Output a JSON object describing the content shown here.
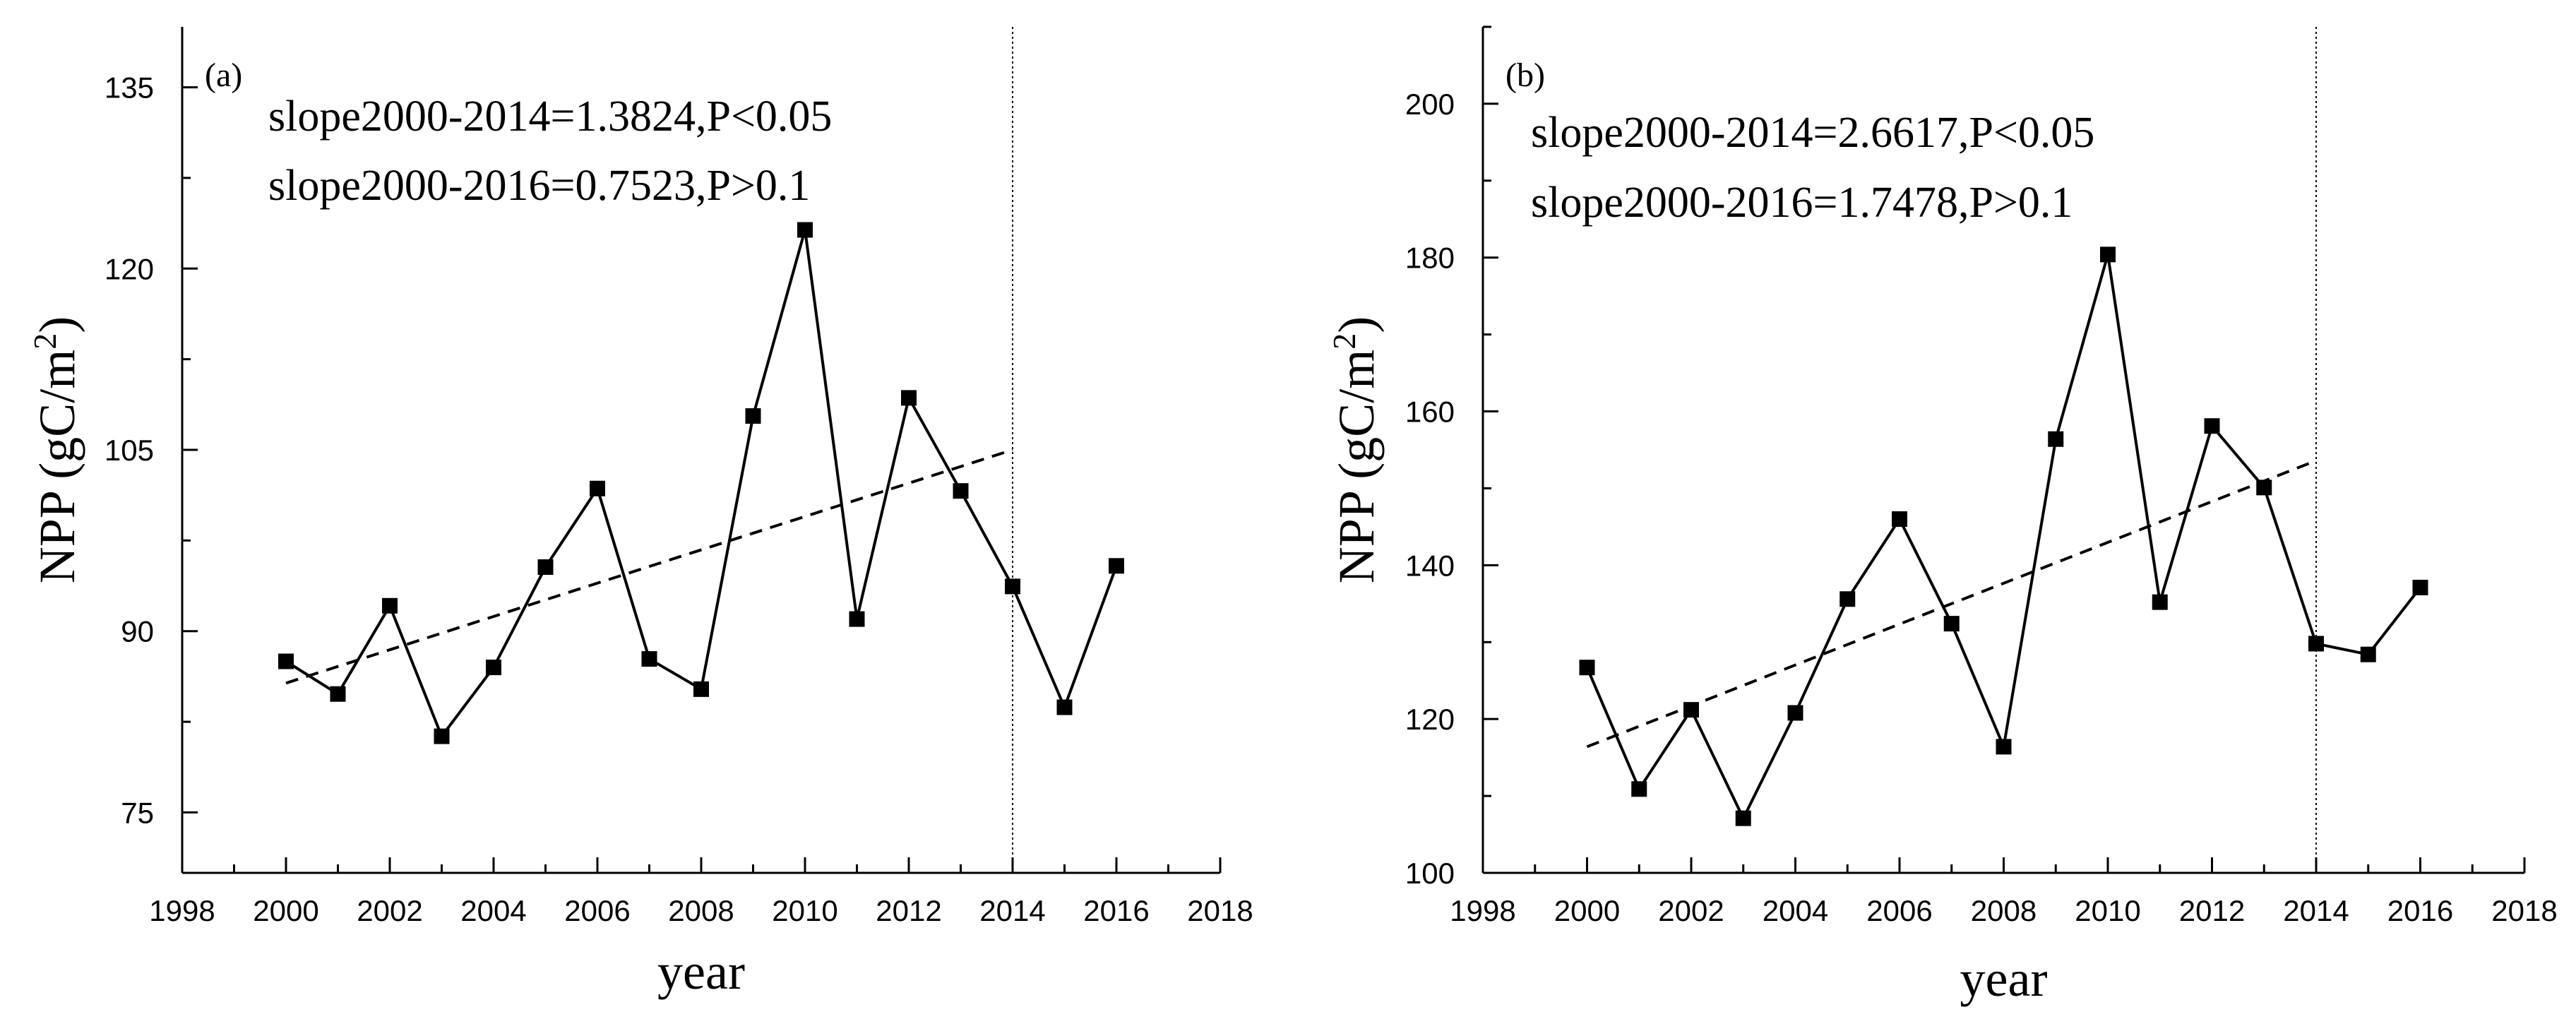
{
  "chart_data": [
    {
      "type": "line",
      "panel_label": "(a)",
      "xlabel": "year",
      "ylabel": "NPP (gC/m",
      "ylabel_sup": "2",
      "ylabel_close": ")",
      "xlim": [
        1998,
        2018
      ],
      "ylim": [
        70,
        140
      ],
      "xticks": [
        1998,
        2000,
        2002,
        2004,
        2006,
        2008,
        2010,
        2012,
        2014,
        2016,
        2018
      ],
      "yticks": [
        75,
        90,
        105,
        120,
        135
      ],
      "x": [
        2000,
        2001,
        2002,
        2003,
        2004,
        2005,
        2006,
        2007,
        2008,
        2009,
        2010,
        2011,
        2012,
        2013,
        2014,
        2015,
        2016
      ],
      "series": [
        {
          "name": "NPP",
          "values": [
            87.5,
            84.8,
            92.1,
            81.3,
            87.0,
            95.3,
            101.8,
            87.7,
            85.2,
            107.8,
            123.2,
            91.0,
            109.3,
            101.6,
            93.7,
            83.7,
            95.4
          ]
        }
      ],
      "trend": {
        "x": [
          2000,
          2014
        ],
        "y": [
          85.7,
          105.0
        ]
      },
      "reference_x": 2014,
      "annotations": [
        "slope2000-2014=1.3824,P<0.05",
        "slope2000-2016=0.7523,P>0.1"
      ]
    },
    {
      "type": "line",
      "panel_label": "(b)",
      "xlabel": "year",
      "ylabel": "NPP (gC/m",
      "ylabel_sup": "2",
      "ylabel_close": ")",
      "xlim": [
        1998,
        2018
      ],
      "ylim": [
        100,
        210
      ],
      "xticks": [
        1998,
        2000,
        2002,
        2004,
        2006,
        2008,
        2010,
        2012,
        2014,
        2016,
        2018
      ],
      "yticks": [
        100,
        120,
        140,
        160,
        180,
        200
      ],
      "x": [
        2000,
        2001,
        2002,
        2003,
        2004,
        2005,
        2006,
        2007,
        2008,
        2009,
        2010,
        2011,
        2012,
        2013,
        2014,
        2015,
        2016
      ],
      "series": [
        {
          "name": "NPP",
          "values": [
            126.7,
            110.9,
            121.2,
            107.1,
            120.8,
            135.6,
            146.0,
            132.4,
            116.4,
            156.4,
            180.4,
            135.2,
            158.1,
            150.1,
            129.8,
            128.4,
            137.1
          ]
        }
      ],
      "trend": {
        "x": [
          2000,
          2014
        ],
        "y": [
          116.4,
          153.6
        ]
      },
      "reference_x": 2014,
      "annotations": [
        "slope2000-2014=2.6617,P<0.05",
        "slope2000-2016=1.7478,P>0.1"
      ]
    }
  ]
}
